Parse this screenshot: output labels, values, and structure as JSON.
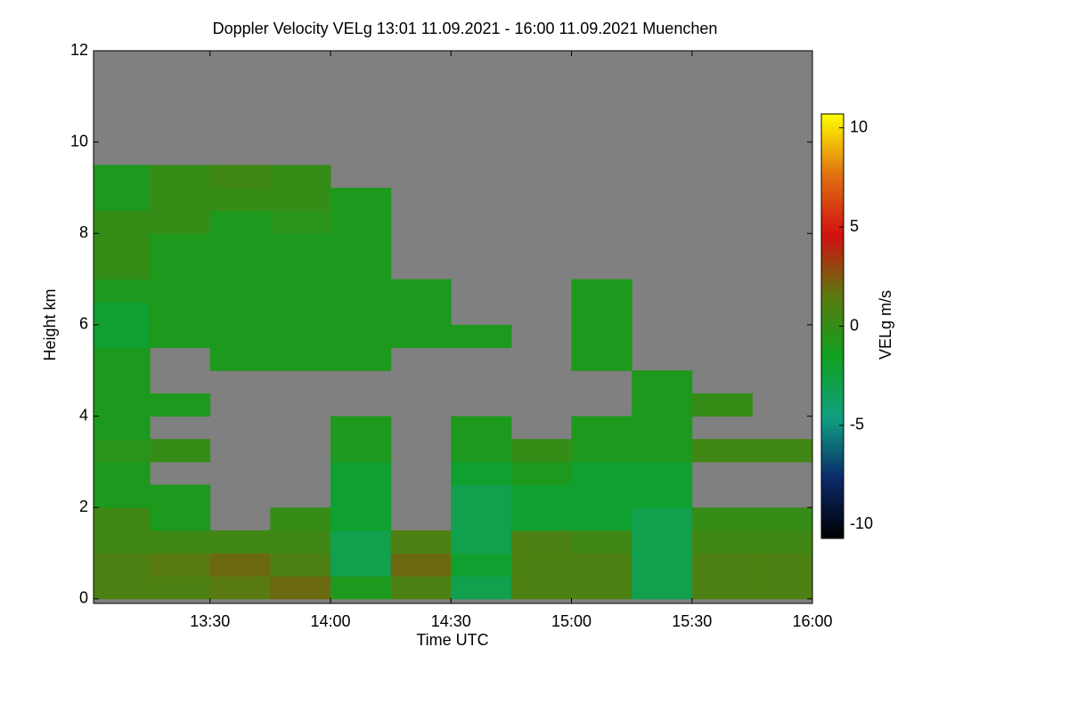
{
  "chart_data": {
    "type": "heatmap",
    "title": "Doppler Velocity VELg   13:01 11.09.2021 - 16:00 11.09.2021 Muenchen",
    "x_label": "Time UTC",
    "y_label": "Height km",
    "colorbar_label": "VELg m/s",
    "xlim": [
      13.0167,
      16.0
    ],
    "ylim": [
      -0.1,
      12
    ],
    "xticks": [
      {
        "value": 13.5,
        "label": "13:30"
      },
      {
        "value": 14.0,
        "label": "14:00"
      },
      {
        "value": 14.5,
        "label": "14:30"
      },
      {
        "value": 15.0,
        "label": "15:00"
      },
      {
        "value": 15.5,
        "label": "15:30"
      },
      {
        "value": 16.0,
        "label": "16:00"
      }
    ],
    "yticks": [
      0,
      2,
      4,
      6,
      8,
      10,
      12
    ],
    "x_bins": [
      13.0167,
      13.25,
      13.5,
      13.75,
      14.0,
      14.25,
      14.5,
      14.75,
      15.0,
      15.25,
      15.5,
      15.75,
      16.0
    ],
    "y_bins": [
      0,
      0.5,
      1,
      1.5,
      2,
      2.5,
      3,
      3.5,
      4,
      4.5,
      5,
      5.5,
      6,
      6.5,
      7,
      7.5,
      8,
      8.5,
      9,
      9.5,
      10,
      10.5,
      11,
      11.5,
      12
    ],
    "values": [
      [
        1,
        1,
        1.5,
        2,
        -1,
        1,
        -3,
        1,
        1,
        -3,
        1,
        1
      ],
      [
        1,
        1.5,
        2,
        1,
        -3,
        2,
        -2,
        1,
        1,
        -3,
        1,
        1
      ],
      [
        0.5,
        0.5,
        0.5,
        0.5,
        -3,
        1,
        -3,
        1,
        0.5,
        -3,
        0.5,
        0.5
      ],
      [
        0.5,
        -1,
        null,
        0,
        -2,
        null,
        -3,
        -2,
        -2,
        -3,
        0,
        0
      ],
      [
        -1,
        -1,
        null,
        null,
        -2,
        null,
        -3,
        -2,
        -2,
        -2,
        null,
        null
      ],
      [
        -1,
        null,
        null,
        null,
        -2,
        null,
        -2,
        -1,
        -2,
        -2,
        null,
        null
      ],
      [
        -0.5,
        0,
        null,
        null,
        -1,
        null,
        -1,
        0,
        -1,
        -1,
        0.5,
        0.5
      ],
      [
        -1,
        null,
        null,
        null,
        -1,
        null,
        -1,
        null,
        -1,
        -1,
        null,
        null
      ],
      [
        -1,
        -1,
        null,
        null,
        null,
        null,
        null,
        null,
        null,
        -1,
        0,
        null
      ],
      [
        -1,
        null,
        null,
        null,
        null,
        null,
        null,
        null,
        null,
        -1,
        null,
        null
      ],
      [
        -1,
        null,
        -1,
        -1,
        -1,
        null,
        null,
        null,
        -1,
        null,
        null,
        null
      ],
      [
        -2,
        -1,
        -1,
        -1,
        -1,
        -1,
        -1,
        null,
        -1,
        null,
        null,
        null
      ],
      [
        -2,
        -1,
        -1,
        -1,
        -1,
        -1,
        null,
        null,
        -1,
        null,
        null,
        null
      ],
      [
        -1,
        -1,
        -1,
        -1,
        -1,
        -1,
        null,
        null,
        -1,
        null,
        null,
        null
      ],
      [
        0,
        -1,
        -1,
        -1,
        -1,
        null,
        null,
        null,
        null,
        null,
        null,
        null
      ],
      [
        0,
        -1,
        -1,
        -1,
        -1,
        null,
        null,
        null,
        null,
        null,
        null,
        null
      ],
      [
        0,
        0,
        -1,
        -0.5,
        -1,
        null,
        null,
        null,
        null,
        null,
        null,
        null
      ],
      [
        -1,
        0,
        0,
        0,
        -1,
        null,
        null,
        null,
        null,
        null,
        null,
        null
      ],
      [
        -1,
        0,
        0.5,
        0,
        null,
        null,
        null,
        null,
        null,
        null,
        null,
        null
      ],
      [
        null,
        null,
        null,
        null,
        null,
        null,
        null,
        null,
        null,
        null,
        null,
        null
      ],
      [
        null,
        null,
        null,
        null,
        null,
        null,
        null,
        null,
        null,
        null,
        null,
        null
      ],
      [
        null,
        null,
        null,
        null,
        null,
        null,
        null,
        null,
        null,
        null,
        null,
        null
      ],
      [
        null,
        null,
        null,
        null,
        null,
        null,
        null,
        null,
        null,
        null,
        null,
        null
      ],
      [
        null,
        null,
        null,
        null,
        null,
        null,
        null,
        null,
        null,
        null,
        null,
        null
      ]
    ],
    "clim": [
      -10.7,
      10.7
    ],
    "cticks": [
      -10,
      -5,
      0,
      5,
      10
    ],
    "colormap": [
      "#000000",
      "#0a2a6a",
      "#10a080",
      "#10a020",
      "#5a7a10",
      "#d01010",
      "#e07010",
      "#ffff00"
    ],
    "no_data_color": "#808080"
  }
}
